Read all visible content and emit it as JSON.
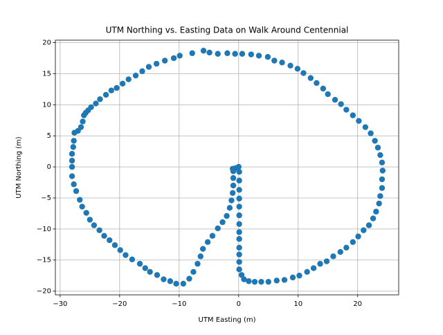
{
  "chart_data": {
    "type": "scatter",
    "title": "UTM Northing vs. Easting Data on Walk Around Centennial",
    "x_label": "UTM Easting (m)",
    "y_label": "UTM Northing (m)",
    "grid": true,
    "xlim": [
      -30.8,
      26.9
    ],
    "ylim": [
      -20.6,
      20.4
    ],
    "xticks": [
      {
        "value": -30,
        "label": "−30"
      },
      {
        "value": -20,
        "label": "−20"
      },
      {
        "value": -10,
        "label": "−10"
      },
      0,
      10,
      20
    ],
    "yticks": [
      {
        "value": -20,
        "label": "−20"
      },
      {
        "value": -15,
        "label": "−15"
      },
      {
        "value": -10,
        "label": "−10"
      },
      {
        "value": -5,
        "label": "−5"
      },
      0,
      5,
      10,
      15,
      20
    ],
    "series": [
      {
        "color": "#1f77b4",
        "x": [
          -5.9,
          -7.8,
          -9.9,
          -10.9,
          -12.4,
          -13.8,
          -15.1,
          -16.2,
          -17.3,
          -18.5,
          -19.5,
          -20.5,
          -21.4,
          -22.3,
          -23.3,
          -24,
          -24.8,
          -25.3,
          -25.7,
          -26,
          -26.2,
          -26.5,
          -27,
          -27.6,
          -27.7,
          -27.8,
          -28,
          -28,
          -28,
          -28,
          -27.7,
          -27.3,
          -26.7,
          -26.3,
          -25.6,
          -25,
          -24.3,
          -23.4,
          -22.6,
          -21.7,
          -20.8,
          -19.9,
          -19,
          -17.9,
          -16.6,
          -15.7,
          -14.9,
          -13.7,
          -12.6,
          -11.5,
          -10.5,
          -9.3,
          -8.3,
          -7.6,
          -6.9,
          -6.4,
          -6,
          -5.2,
          -4.4,
          -3.5,
          -2.7,
          -2,
          -1.5,
          -1.2,
          -1,
          -0.9,
          -0.9,
          -0.9,
          -1,
          -0.5,
          0,
          0.1,
          0.1,
          0.1,
          0.1,
          0.1,
          0.1,
          0.1,
          0.1,
          0.1,
          0.1,
          0.1,
          0.1,
          0.1,
          0.5,
          0.9,
          1.7,
          2.7,
          3.8,
          5,
          6.4,
          7.7,
          9.1,
          10.2,
          11.5,
          12.6,
          13.7,
          14.8,
          15.9,
          17.1,
          18.1,
          19.2,
          20.1,
          21,
          21.9,
          22.6,
          23.1,
          23.6,
          23.8,
          24.1,
          24.1,
          24.2,
          24.1,
          23.8,
          23.4,
          22.9,
          22.2,
          21.3,
          20.2,
          19.2,
          18.1,
          17.2,
          16.2,
          15,
          14.2,
          13.1,
          12.1,
          10.9,
          9.9,
          8.7,
          7.3,
          6,
          4.9,
          3.4,
          2.1,
          0.6,
          -0.6,
          -1.9,
          -3.5,
          -4.9
        ],
        "y": [
          18.7,
          18.3,
          17.9,
          17.5,
          17.1,
          16.6,
          16.1,
          15.4,
          14.7,
          14.1,
          13.4,
          12.7,
          12.3,
          11.6,
          10.9,
          10.2,
          9.6,
          9.1,
          8.7,
          8.3,
          7.3,
          6.4,
          5.8,
          5.5,
          4.2,
          3.2,
          2.1,
          1,
          0,
          -1.5,
          -2.8,
          -3.9,
          -5.3,
          -6.4,
          -7.4,
          -8.5,
          -9.4,
          -10.2,
          -11.1,
          -11.8,
          -12.6,
          -13.4,
          -14.2,
          -14.9,
          -15.6,
          -16.3,
          -16.9,
          -17.4,
          -18.1,
          -18.4,
          -18.8,
          -18.8,
          -18,
          -16.9,
          -15.6,
          -14.4,
          -13.2,
          -12.1,
          -11.1,
          -9.9,
          -8.9,
          -7.9,
          -6.6,
          -5.4,
          -4.2,
          -3,
          -1.8,
          -0.7,
          -0.3,
          -0.2,
          0,
          -0.8,
          -2.2,
          -3.7,
          -5.1,
          -6.4,
          -7.8,
          -9.2,
          -10.5,
          -11.6,
          -13,
          -14.1,
          -15.3,
          -16.5,
          -17.4,
          -18.1,
          -18.4,
          -18.5,
          -18.5,
          -18.5,
          -18.3,
          -18.2,
          -17.8,
          -17.5,
          -16.9,
          -16.3,
          -15.6,
          -15.2,
          -14.4,
          -13.7,
          -13,
          -12.1,
          -11.2,
          -10.2,
          -9.4,
          -8.3,
          -7.2,
          -5.9,
          -4.7,
          -3.4,
          -2,
          -0.6,
          0.7,
          1.9,
          3.1,
          4.2,
          5.4,
          6.4,
          7.4,
          8.3,
          9.2,
          10.1,
          10.8,
          11.7,
          12.6,
          13.5,
          14.3,
          15.1,
          15.8,
          16.3,
          16.8,
          17.1,
          17.7,
          17.9,
          18.1,
          18.2,
          18.2,
          18.3,
          18.2,
          18.4
        ]
      }
    ]
  }
}
